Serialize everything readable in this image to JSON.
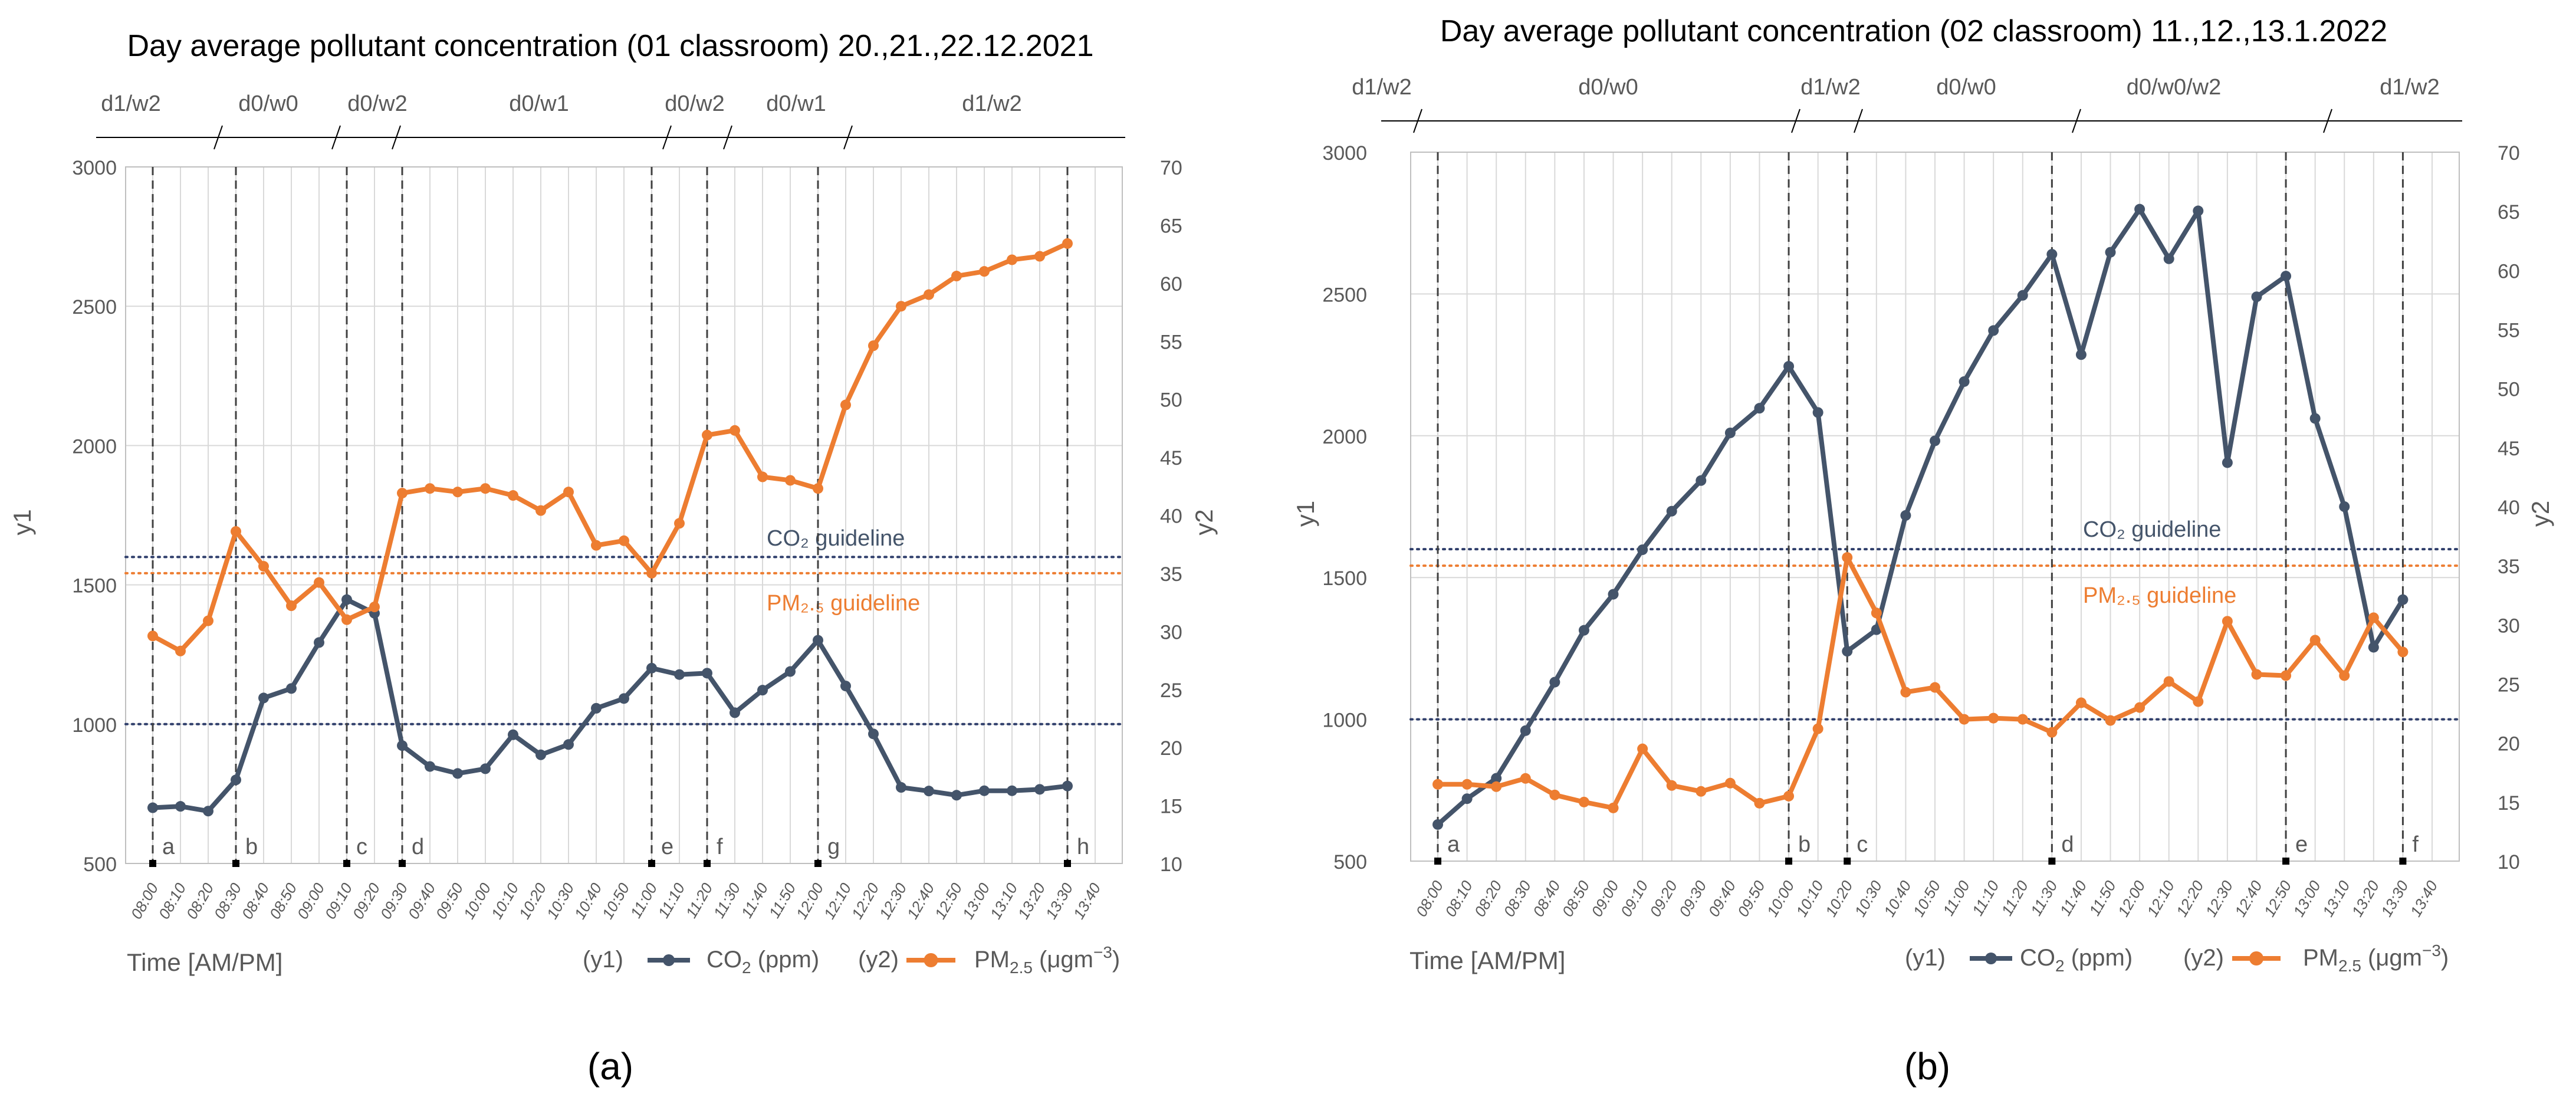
{
  "colors": {
    "co2": "#44546A",
    "pm": "#ED7D31",
    "grid": "#D9D9D9",
    "axis": "#BFBFBF",
    "text": "#595959",
    "title": "#000000"
  },
  "common": {
    "x_ticks": [
      "08:00",
      "08:10",
      "08:20",
      "08:30",
      "08:40",
      "08:50",
      "09:00",
      "09:10",
      "09:20",
      "09:30",
      "09:40",
      "09:50",
      "10:00",
      "10:10",
      "10:20",
      "10:30",
      "10:40",
      "10:50",
      "11:00",
      "11:10",
      "11:20",
      "11:30",
      "11:40",
      "11:50",
      "12:00",
      "12:10",
      "12:20",
      "12:30",
      "12:40",
      "12:50",
      "13:00",
      "13:10",
      "13:20",
      "13:30",
      "13:40"
    ],
    "y1_ticks": [
      500,
      1000,
      1500,
      2000,
      2500,
      3000
    ],
    "y2_ticks": [
      10,
      15,
      20,
      25,
      30,
      35,
      40,
      45,
      50,
      55,
      60,
      65,
      70
    ],
    "y1_label": "y1",
    "y2_label": "y2",
    "x_label": "Time [AM/PM]",
    "legend_y1_prefix": "(y1)",
    "legend_y2_prefix": "(y2)",
    "legend_co2_main": "CO",
    "legend_co2_sub": "2",
    "legend_co2_unit": " (ppm)",
    "legend_pm_main": "PM",
    "legend_pm_sub": "2.5",
    "legend_pm_unit": " (μgm",
    "legend_pm_sup": "−3",
    "legend_pm_close": ")",
    "co2_guideline_label": "CO₂ guideline",
    "pm_guideline_label": "PM₂.₅ guideline"
  },
  "chart_data": [
    {
      "type": "line",
      "panel_label": "(a)",
      "title": "Day average pollutant concentration (01 classroom)  20.,21.,22.12.2021",
      "xlabel": "Time [AM/PM]",
      "ylabel": "y1",
      "y2label": "y2",
      "ylim": [
        500,
        3000
      ],
      "y2lim": [
        10,
        70
      ],
      "guidelines": {
        "co2_upper": 1600,
        "co2_lower": 1000,
        "pm": 35
      },
      "series": [
        {
          "name": "CO2 (ppm)",
          "axis": "y1",
          "values": [
            700,
            705,
            688,
            800,
            1094,
            1128,
            1293,
            1447,
            1398,
            923,
            848,
            823,
            840,
            962,
            890,
            927,
            1057,
            1092,
            1201,
            1178,
            1183,
            1041,
            1122,
            1189,
            1301,
            1137,
            965,
            773,
            760,
            745,
            761,
            761,
            766,
            778
          ]
        },
        {
          "name": "PM2.5 (μgm−3)",
          "axis": "y2",
          "values": [
            29.6,
            28.3,
            30.9,
            38.6,
            35.6,
            32.2,
            34.2,
            31.0,
            32.1,
            41.9,
            42.3,
            42.0,
            42.3,
            41.7,
            40.4,
            42.0,
            37.4,
            37.8,
            35.0,
            39.3,
            46.9,
            47.3,
            43.3,
            43.0,
            42.3,
            49.5,
            54.6,
            58.0,
            59.0,
            60.6,
            61.0,
            62.0,
            62.3,
            63.4
          ]
        }
      ],
      "event_markers": [
        {
          "label": "a",
          "x": "08:00"
        },
        {
          "label": "b",
          "x": "08:30"
        },
        {
          "label": "c",
          "x": "09:10"
        },
        {
          "label": "d",
          "x": "09:30"
        },
        {
          "label": "e",
          "x": "11:00"
        },
        {
          "label": "f",
          "x": "11:20"
        },
        {
          "label": "g",
          "x": "12:00"
        },
        {
          "label": "h",
          "x": "13:30"
        }
      ],
      "phase_labels": [
        "d1/w2",
        "d0/w0",
        "d0/w2",
        "d0/w1",
        "d0/w2",
        "d0/w1",
        "d1/w2"
      ]
    },
    {
      "type": "line",
      "panel_label": "(b)",
      "title": "Day average pollutant concentration (02 classroom)  11.,12.,13.1.2022",
      "xlabel": "Time [AM/PM]",
      "ylabel": "y1",
      "y2label": "y2",
      "ylim": [
        500,
        3000
      ],
      "y2lim": [
        10,
        70
      ],
      "guidelines": {
        "co2_upper": 1600,
        "co2_lower": 1000,
        "pm": 35
      },
      "series": [
        {
          "name": "CO2 (ppm)",
          "axis": "y1",
          "values": [
            629,
            720,
            792,
            960,
            1131,
            1314,
            1441,
            1598,
            1734,
            1842,
            2010,
            2097,
            2245,
            2082,
            1240,
            1316,
            1719,
            1982,
            2191,
            2371,
            2495,
            2640,
            2286,
            2647,
            2799,
            2624,
            2793,
            1905,
            2490,
            2563,
            2061,
            1750,
            1254,
            1422
          ]
        },
        {
          "name": "PM2.5 (μgm−3)",
          "axis": "y2",
          "values": [
            16.5,
            16.5,
            16.3,
            17.0,
            15.6,
            15.0,
            14.5,
            19.5,
            16.4,
            15.9,
            16.6,
            14.9,
            15.5,
            21.2,
            35.7,
            31.0,
            24.3,
            24.7,
            22.0,
            22.1,
            22.0,
            20.9,
            23.4,
            21.9,
            23.0,
            25.2,
            23.5,
            30.3,
            25.8,
            25.7,
            28.7,
            25.7,
            30.6,
            27.7
          ]
        }
      ],
      "event_markers": [
        {
          "label": "a",
          "x": "08:00"
        },
        {
          "label": "b",
          "x": "10:00"
        },
        {
          "label": "c",
          "x": "10:20"
        },
        {
          "label": "d",
          "x": "11:30"
        },
        {
          "label": "e",
          "x": "12:50"
        },
        {
          "label": "f",
          "x": "13:30"
        }
      ],
      "phase_labels": [
        "d1/w2",
        "d0/w0",
        "d1/w2",
        "d0/w0",
        "d0/w0/w2",
        "d1/w2"
      ]
    }
  ]
}
